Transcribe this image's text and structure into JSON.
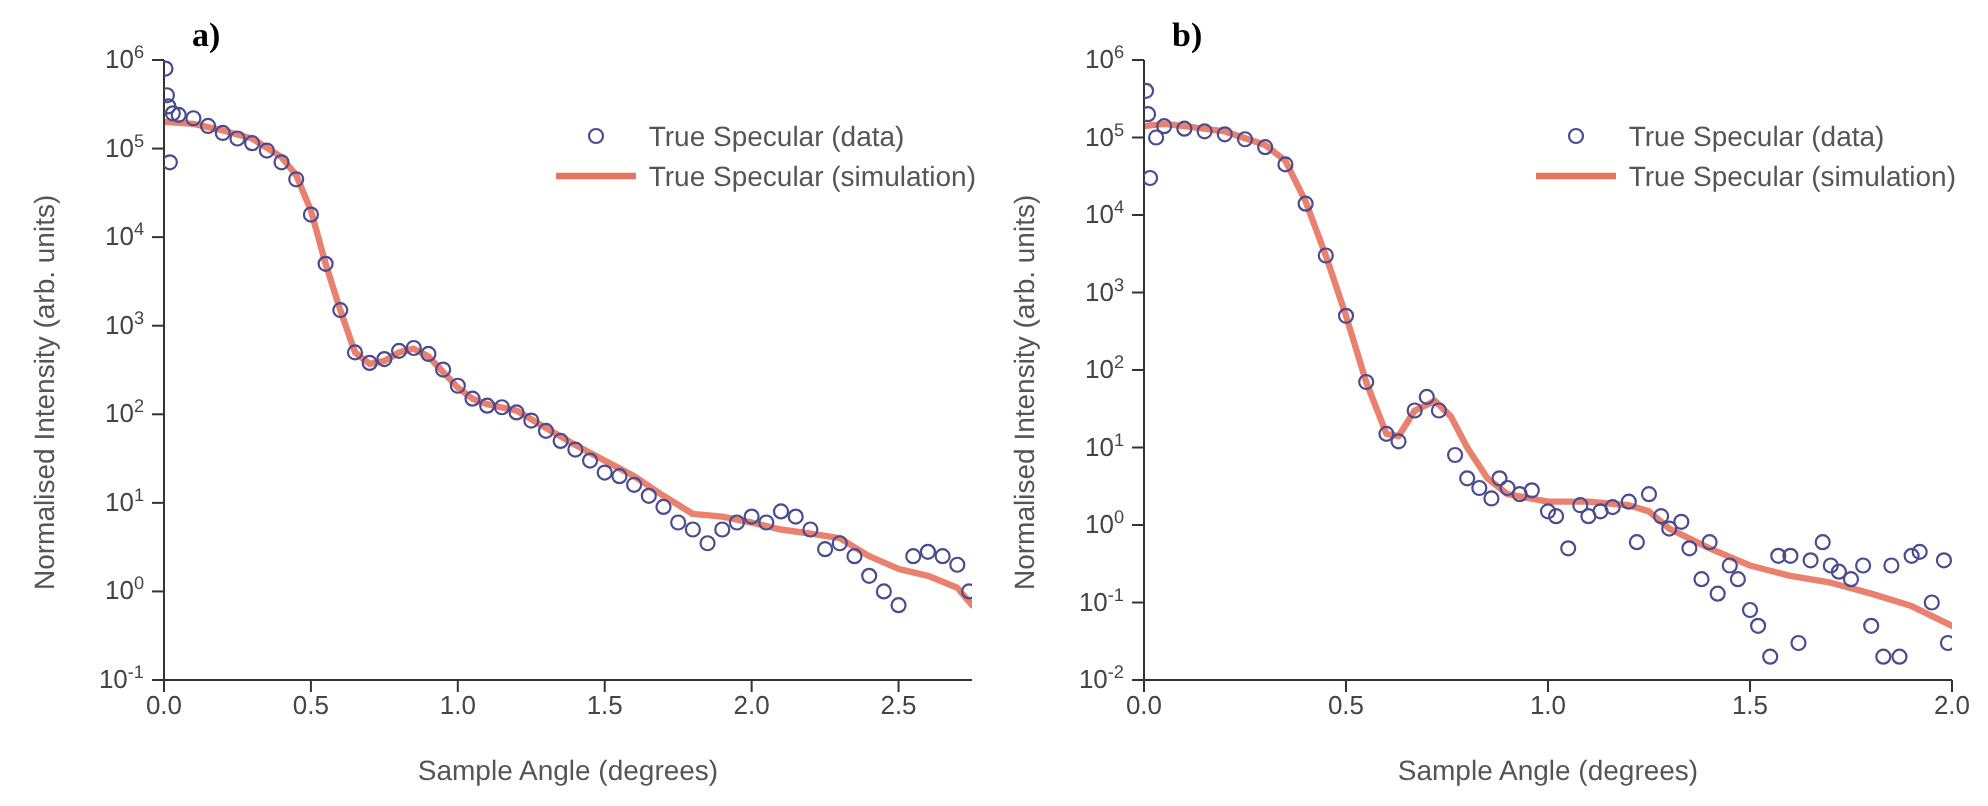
{
  "chart_data": [
    {
      "type": "scatter",
      "title": "a)",
      "xlabel": "Sample Angle (degrees)",
      "ylabel": "Normalised Intensity (arb. units)",
      "log": "y",
      "legend": "top right",
      "xlim": [
        0,
        2.75
      ],
      "xticks": [
        {
          "value": 0,
          "label": "0.0"
        },
        0.5,
        {
          "value": 1,
          "label": "1.0"
        },
        1.5,
        {
          "value": 2,
          "label": "2.0"
        },
        2.5
      ],
      "ylim": [
        0.1,
        1000000
      ],
      "yticks": [
        {
          "value": 0.1,
          "label": "10$^{-1}$"
        },
        {
          "value": 1,
          "label": "10$^{0}$"
        },
        {
          "value": 10,
          "label": "10$^{1}$"
        },
        {
          "value": 100,
          "label": "10$^{2}$"
        },
        {
          "value": 1000,
          "label": "10$^{3}$"
        },
        {
          "value": 10000,
          "label": "10$^{4}$"
        },
        {
          "value": 100000,
          "label": "10$^{5}$"
        },
        {
          "value": 1000000,
          "label": "10$^{6}$"
        }
      ],
      "series": [
        {
          "name": "True Specular (data)",
          "marker": "circle",
          "color": "#4b4b8f",
          "x": [
            0.005,
            0.01,
            0.015,
            0.02,
            0.03,
            0.05,
            0.1,
            0.15,
            0.2,
            0.25,
            0.3,
            0.35,
            0.4,
            0.45,
            0.5,
            0.55,
            0.6,
            0.65,
            0.7,
            0.75,
            0.8,
            0.85,
            0.9,
            0.95,
            1.0,
            1.05,
            1.1,
            1.15,
            1.2,
            1.25,
            1.3,
            1.35,
            1.4,
            1.45,
            1.5,
            1.55,
            1.6,
            1.65,
            1.7,
            1.75,
            1.8,
            1.85,
            1.9,
            1.95,
            2.0,
            2.05,
            2.1,
            2.15,
            2.2,
            2.25,
            2.3,
            2.35,
            2.4,
            2.45,
            2.5,
            2.55,
            2.6,
            2.65,
            2.7,
            2.74
          ],
          "values": [
            800000,
            400000,
            300000,
            70000,
            250000,
            240000,
            220000,
            180000,
            150000,
            130000,
            115000,
            95000,
            70000,
            45000,
            18000,
            5000,
            1500,
            500,
            380,
            420,
            520,
            560,
            480,
            320,
            210,
            150,
            125,
            120,
            105,
            85,
            65,
            50,
            40,
            30,
            22,
            20,
            16,
            12,
            9,
            6,
            5,
            3.5,
            5,
            6,
            7,
            6,
            8,
            7,
            5,
            3,
            3.5,
            2.5,
            1.5,
            1,
            0.7,
            2.5,
            2.8,
            2.5,
            2,
            1
          ]
        },
        {
          "name": "True Specular (simulation)",
          "type": "line",
          "marker": "none",
          "color": "#e8735f",
          "x": [
            0,
            0.1,
            0.2,
            0.3,
            0.4,
            0.45,
            0.5,
            0.55,
            0.6,
            0.65,
            0.7,
            0.75,
            0.8,
            0.85,
            0.9,
            0.95,
            1.0,
            1.05,
            1.1,
            1.2,
            1.3,
            1.4,
            1.5,
            1.6,
            1.7,
            1.8,
            1.9,
            2.0,
            2.1,
            2.2,
            2.3,
            2.4,
            2.5,
            2.6,
            2.7,
            2.75
          ],
          "values": [
            200000,
            190000,
            160000,
            130000,
            80000,
            50000,
            20000,
            5000,
            1500,
            500,
            370,
            400,
            500,
            550,
            450,
            300,
            200,
            150,
            130,
            110,
            70,
            45,
            30,
            20,
            12,
            7.5,
            7,
            6,
            5,
            4.5,
            4,
            2.5,
            1.8,
            1.5,
            1.1,
            0.7
          ]
        }
      ]
    },
    {
      "type": "scatter",
      "title": "b)",
      "xlabel": "Sample Angle (degrees)",
      "ylabel": "Normalised Intensity (arb. units)",
      "log": "y",
      "legend": "top right",
      "xlim": [
        0,
        2
      ],
      "xticks": [
        {
          "value": 0,
          "label": "0.0"
        },
        0.5,
        {
          "value": 1,
          "label": "1.0"
        },
        1.5,
        {
          "value": 2,
          "label": "2.0"
        }
      ],
      "ylim": [
        0.01,
        1000000
      ],
      "yticks": [
        {
          "value": 0.01,
          "label": "10$^{-2}$"
        },
        {
          "value": 0.1,
          "label": "10$^{-1}$"
        },
        {
          "value": 1,
          "label": "10$^{0}$"
        },
        {
          "value": 10,
          "label": "10$^{1}$"
        },
        {
          "value": 100,
          "label": "10$^{2}$"
        },
        {
          "value": 1000,
          "label": "10$^{3}$"
        },
        {
          "value": 10000,
          "label": "10$^{4}$"
        },
        {
          "value": 100000,
          "label": "10$^{5}$"
        },
        {
          "value": 1000000,
          "label": "10$^{6}$"
        }
      ],
      "series": [
        {
          "name": "True Specular (data)",
          "marker": "circle",
          "color": "#4b4b8f",
          "x": [
            0.005,
            0.01,
            0.015,
            0.03,
            0.05,
            0.1,
            0.15,
            0.2,
            0.25,
            0.3,
            0.35,
            0.4,
            0.45,
            0.5,
            0.55,
            0.6,
            0.63,
            0.67,
            0.7,
            0.73,
            0.77,
            0.8,
            0.83,
            0.86,
            0.88,
            0.9,
            0.93,
            0.96,
            1.0,
            1.02,
            1.05,
            1.08,
            1.1,
            1.13,
            1.16,
            1.2,
            1.22,
            1.25,
            1.28,
            1.3,
            1.33,
            1.35,
            1.38,
            1.4,
            1.42,
            1.45,
            1.47,
            1.5,
            1.52,
            1.55,
            1.57,
            1.6,
            1.62,
            1.65,
            1.68,
            1.7,
            1.72,
            1.75,
            1.78,
            1.8,
            1.83,
            1.85,
            1.87,
            1.9,
            1.92,
            1.95,
            1.98,
            1.99
          ],
          "values": [
            400000,
            200000,
            30000,
            100000,
            140000,
            130000,
            120000,
            110000,
            95000,
            75000,
            45000,
            14000,
            3000,
            500,
            70,
            15,
            12,
            30,
            45,
            30,
            8,
            4,
            3,
            2.2,
            4,
            3,
            2.5,
            2.8,
            1.5,
            1.3,
            0.5,
            1.8,
            1.3,
            1.5,
            1.7,
            2,
            0.6,
            2.5,
            1.3,
            0.9,
            1.1,
            0.5,
            0.2,
            0.6,
            0.13,
            0.3,
            0.2,
            0.08,
            0.05,
            0.02,
            0.4,
            0.4,
            0.03,
            0.35,
            0.6,
            0.3,
            0.25,
            0.2,
            0.3,
            0.05,
            0.02,
            0.3,
            0.02,
            0.4,
            0.45,
            0.1,
            0.35,
            0.03
          ]
        },
        {
          "name": "True Specular (simulation)",
          "type": "line",
          "marker": "none",
          "color": "#e8735f",
          "x": [
            0,
            0.05,
            0.1,
            0.2,
            0.3,
            0.35,
            0.4,
            0.45,
            0.5,
            0.55,
            0.6,
            0.63,
            0.67,
            0.72,
            0.76,
            0.8,
            0.85,
            0.9,
            1.0,
            1.1,
            1.2,
            1.25,
            1.3,
            1.4,
            1.5,
            1.6,
            1.7,
            1.8,
            1.9,
            2.0
          ],
          "values": [
            140000,
            150000,
            140000,
            120000,
            80000,
            50000,
            15000,
            3000,
            500,
            70,
            15,
            14,
            30,
            40,
            25,
            10,
            4,
            2.5,
            2,
            2,
            1.8,
            1.5,
            0.9,
            0.5,
            0.3,
            0.22,
            0.18,
            0.13,
            0.09,
            0.05
          ]
        }
      ]
    }
  ]
}
